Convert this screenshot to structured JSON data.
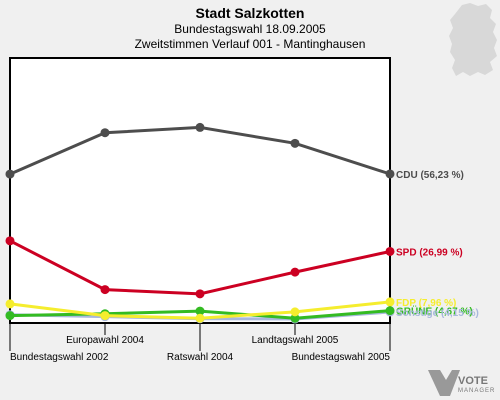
{
  "chart_data": {
    "type": "line",
    "title": "Stadt Salzkotten",
    "subtitle1": "Bundestagswahl 18.09.2005",
    "subtitle2": "Zweitstimmen Verlauf 001 - Mantinghausen",
    "categories": [
      "Bundestagswahl 2002",
      "Europawahl 2004",
      "Ratswahl 2004",
      "Landtagswahl 2005",
      "Bundestagswahl 2005"
    ],
    "ylim": [
      0,
      100
    ],
    "grid": false,
    "series": [
      {
        "name": "CDU",
        "label": "CDU (56,23 %)",
        "color": "#4d4d4d",
        "values": [
          56.2,
          71.8,
          73.8,
          67.8,
          56.23
        ]
      },
      {
        "name": "SPD",
        "label": "SPD (26,99 %)",
        "color": "#cc0022",
        "values": [
          31.0,
          12.6,
          11.0,
          19.2,
          26.99
        ]
      },
      {
        "name": "FDP",
        "label": "FDP (7,96 %)",
        "color": "#f5ed2e",
        "values": [
          7.2,
          2.8,
          1.8,
          4.2,
          7.96
        ]
      },
      {
        "name": "GRÜNE",
        "label": "GRÜNE (4,67 %)",
        "color": "#33bb22",
        "values": [
          2.8,
          3.5,
          4.5,
          1.8,
          4.67
        ]
      },
      {
        "name": "Sonstige",
        "label": "Sonstige (4,15 %)",
        "color": "#a8b8dd",
        "values": [
          3.1,
          2.4,
          1.6,
          1.5,
          4.15
        ]
      }
    ]
  },
  "logo": {
    "line1": "VOTE",
    "line2": "MANAGER"
  }
}
